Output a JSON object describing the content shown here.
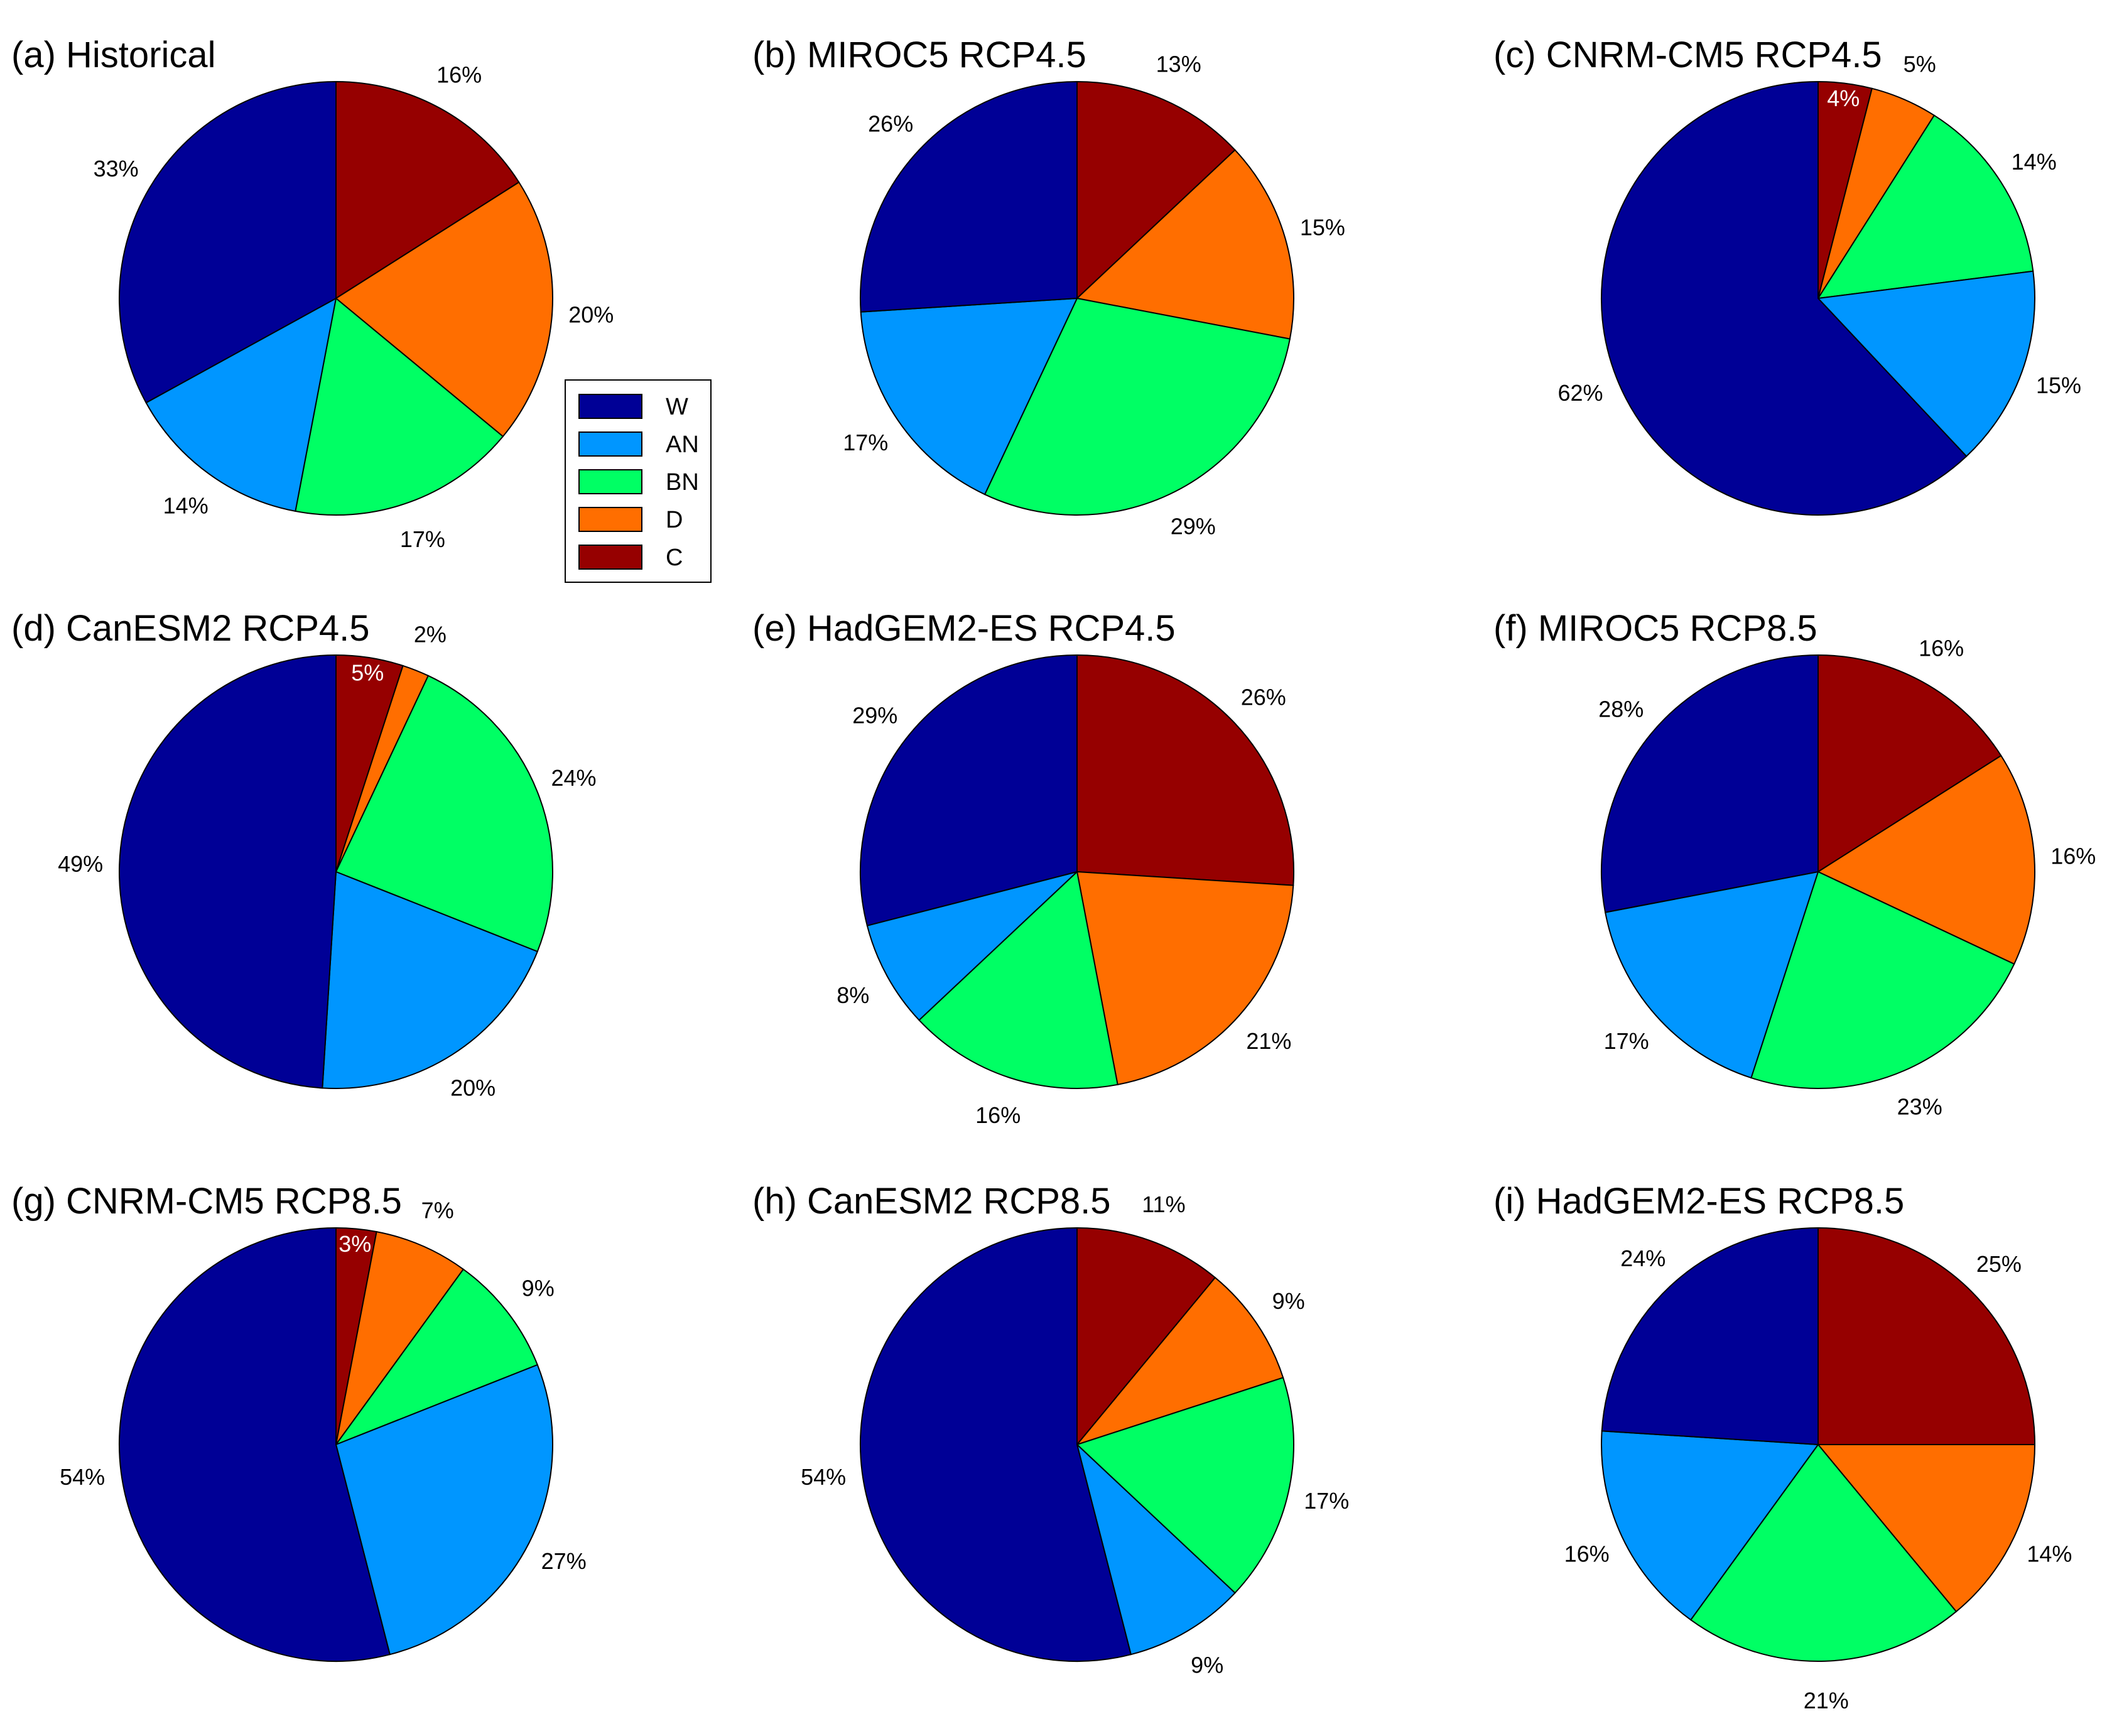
{
  "categories": [
    "W",
    "AN",
    "BN",
    "D",
    "C"
  ],
  "colors": {
    "W": "#000096",
    "AN": "#0096ff",
    "BN": "#00ff64",
    "D": "#ff6e00",
    "C": "#960000"
  },
  "legend": {
    "items": [
      "W",
      "AN",
      "BN",
      "D",
      "C"
    ]
  },
  "chart_data": [
    {
      "type": "pie",
      "title": "(a) Historical",
      "categories": [
        "W",
        "AN",
        "BN",
        "D",
        "C"
      ],
      "values": [
        33,
        14,
        17,
        20,
        16
      ],
      "labels": [
        "33%",
        "14%",
        "17%",
        "20%",
        "16%"
      ]
    },
    {
      "type": "pie",
      "title": "(b) MIROC5 RCP4.5",
      "categories": [
        "W",
        "AN",
        "BN",
        "D",
        "C"
      ],
      "values": [
        26,
        17,
        29,
        15,
        13
      ],
      "labels": [
        "26%",
        "17%",
        "29%",
        "15%",
        "13%"
      ]
    },
    {
      "type": "pie",
      "title": "(c) CNRM-CM5 RCP4.5",
      "categories": [
        "W",
        "AN",
        "BN",
        "D",
        "C"
      ],
      "values": [
        62,
        15,
        14,
        5,
        4
      ],
      "labels": [
        "62%",
        "15%",
        "14%",
        "5%",
        "4%"
      ],
      "inside_label": "C"
    },
    {
      "type": "pie",
      "title": "(d) CanESM2 RCP4.5",
      "categories": [
        "W",
        "AN",
        "BN",
        "D",
        "C"
      ],
      "values": [
        49,
        20,
        24,
        2,
        5
      ],
      "labels": [
        "49%",
        "20%",
        "24%",
        "2%",
        "5%"
      ],
      "inside_label": "C"
    },
    {
      "type": "pie",
      "title": "(e) HadGEM2-ES RCP4.5",
      "categories": [
        "W",
        "AN",
        "BN",
        "D",
        "C"
      ],
      "values": [
        29,
        8,
        16,
        21,
        26
      ],
      "labels": [
        "29%",
        "8%",
        "16%",
        "21%",
        "26%"
      ]
    },
    {
      "type": "pie",
      "title": "(f) MIROC5 RCP8.5",
      "categories": [
        "W",
        "AN",
        "BN",
        "D",
        "C"
      ],
      "values": [
        28,
        17,
        23,
        16,
        16
      ],
      "labels": [
        "28%",
        "17%",
        "23%",
        "16%",
        "16%"
      ]
    },
    {
      "type": "pie",
      "title": "(g) CNRM-CM5 RCP8.5",
      "categories": [
        "W",
        "AN",
        "BN",
        "D",
        "C"
      ],
      "values": [
        54,
        27,
        9,
        7,
        3
      ],
      "labels": [
        "54%",
        "27%",
        "9%",
        "7%",
        "3%"
      ],
      "inside_label": "C"
    },
    {
      "type": "pie",
      "title": "(h) CanESM2 RCP8.5",
      "categories": [
        "W",
        "AN",
        "BN",
        "D",
        "C"
      ],
      "values": [
        54,
        9,
        17,
        9,
        11
      ],
      "labels": [
        "54%",
        "9%",
        "17%",
        "9%",
        "11%"
      ]
    },
    {
      "type": "pie",
      "title": "(i) HadGEM2-ES RCP8.5",
      "categories": [
        "W",
        "AN",
        "BN",
        "D",
        "C"
      ],
      "values": [
        24,
        16,
        21,
        14,
        25
      ],
      "labels": [
        "24%",
        "16%",
        "21%",
        "14%",
        "25%"
      ]
    }
  ]
}
